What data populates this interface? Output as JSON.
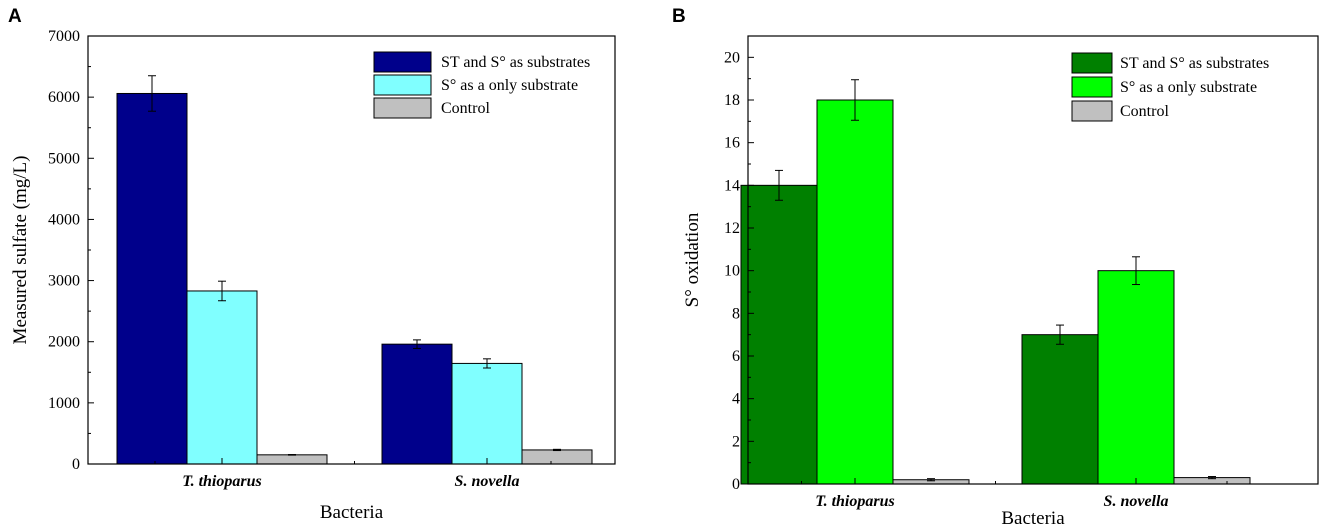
{
  "chart_data": [
    {
      "panel": "A",
      "type": "bar",
      "categories": [
        "T. thioparus",
        "S. novella"
      ],
      "xlabel": "Bacteria",
      "ylabel": "Measured sulfate (mg/L)",
      "ylim": [
        0,
        7000
      ],
      "yticks": [
        0,
        1000,
        2000,
        3000,
        4000,
        5000,
        6000,
        7000
      ],
      "legend_position": "top-right",
      "series": [
        {
          "name": "ST and S° as substrates",
          "color": "#00008b",
          "values": [
            6060,
            1960
          ],
          "errors": [
            290,
            70
          ]
        },
        {
          "name": "S° as a only substrate",
          "color": "#80ffff",
          "values": [
            2830,
            1645
          ],
          "errors": [
            160,
            75
          ]
        },
        {
          "name": "Control",
          "color": "#c0c0c0",
          "values": [
            150,
            230
          ],
          "errors": [
            5,
            10
          ]
        }
      ]
    },
    {
      "panel": "B",
      "type": "bar",
      "categories": [
        "T. thioparus",
        "S. novella"
      ],
      "xlabel": "Bacteria",
      "ylabel": "S° oxidation",
      "ylim": [
        0,
        21
      ],
      "yticks": [
        0,
        2,
        4,
        6,
        8,
        10,
        12,
        14,
        16,
        18,
        20
      ],
      "legend_position": "top-right",
      "series": [
        {
          "name": "ST and S° as substrates",
          "color": "#008000",
          "values": [
            14,
            7
          ],
          "errors": [
            0.7,
            0.45
          ]
        },
        {
          "name": "S° as a only substrate",
          "color": "#00ff00",
          "values": [
            18,
            10
          ],
          "errors": [
            0.95,
            0.65
          ]
        },
        {
          "name": "Control",
          "color": "#c0c0c0",
          "values": [
            0.2,
            0.3
          ],
          "errors": [
            0.05,
            0.05
          ]
        }
      ]
    }
  ]
}
